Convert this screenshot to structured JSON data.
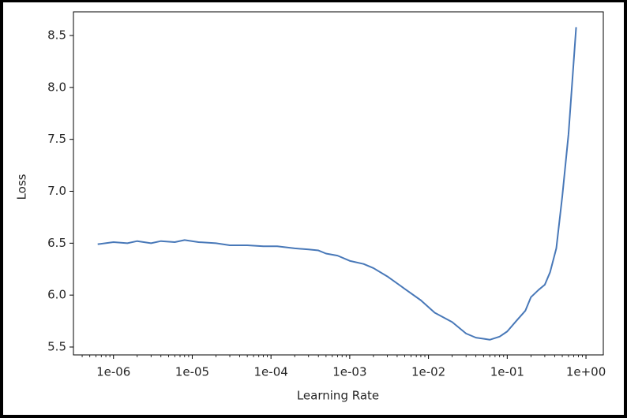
{
  "chart_data": {
    "type": "line",
    "x_label": "Learning Rate",
    "y_label": "Loss",
    "x_log": true,
    "color": "#4878b8",
    "x": [
      6.3e-07,
      1e-06,
      1.5e-06,
      2e-06,
      3e-06,
      4e-06,
      6e-06,
      8e-06,
      1.2e-05,
      2e-05,
      3e-05,
      5e-05,
      8e-05,
      0.00012,
      0.0002,
      0.0003,
      0.0004,
      0.0005,
      0.0007,
      0.001,
      0.0015,
      0.002,
      0.003,
      0.005,
      0.008,
      0.012,
      0.02,
      0.03,
      0.04,
      0.05,
      0.06,
      0.08,
      0.1,
      0.13,
      0.17,
      0.2,
      0.25,
      0.3,
      0.35,
      0.42,
      0.5,
      0.6,
      0.75
    ],
    "values": [
      6.49,
      6.51,
      6.5,
      6.52,
      6.5,
      6.52,
      6.51,
      6.53,
      6.51,
      6.5,
      6.48,
      6.48,
      6.47,
      6.47,
      6.45,
      6.44,
      6.43,
      6.4,
      6.38,
      6.33,
      6.3,
      6.26,
      6.18,
      6.06,
      5.95,
      5.83,
      5.74,
      5.63,
      5.59,
      5.58,
      5.57,
      5.6,
      5.65,
      5.75,
      5.85,
      5.98,
      6.05,
      6.1,
      6.22,
      6.45,
      6.95,
      7.55,
      8.58
    ],
    "xlim": [
      3.1e-07,
      1.66
    ],
    "ylim": [
      5.424,
      8.728
    ],
    "xticks": [
      {
        "value": 1e-06,
        "label": "1e-06"
      },
      {
        "value": 1e-05,
        "label": "1e-05"
      },
      {
        "value": 0.0001,
        "label": "1e-04"
      },
      {
        "value": 0.001,
        "label": "1e-03"
      },
      {
        "value": 0.01,
        "label": "1e-02"
      },
      {
        "value": 0.1,
        "label": "1e-01"
      },
      {
        "value": 1,
        "label": "1e+00"
      }
    ],
    "yticks": [
      5.5,
      {
        "value": 6,
        "label": "6.0"
      },
      6.5,
      {
        "value": 7,
        "label": "7.0"
      },
      7.5,
      {
        "value": 8,
        "label": "8.0"
      },
      8.5
    ]
  }
}
